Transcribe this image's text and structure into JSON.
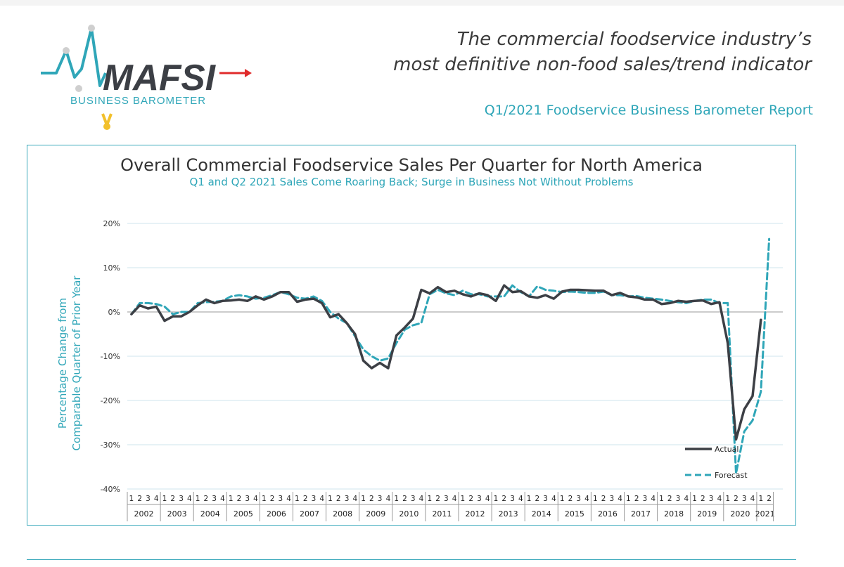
{
  "header": {
    "logo_text": "MAFSI",
    "logo_sub": "BUSINESS BAROMETER",
    "tagline_line1": "The commercial foodservice industry’s",
    "tagline_line2": "most definitive non-food sales/trend indicator",
    "report_title": "Q1/2021 Foodservice Business Barometer Report"
  },
  "colors": {
    "accent": "#2fa6b8",
    "actual": "#3c3f45",
    "forecast": "#2fa6b8",
    "logo_red": "#e02b2b",
    "logo_yellow": "#f2c02c"
  },
  "chart_data": {
    "type": "line",
    "title": "Overall Commercial Foodservice Sales Per Quarter for North America",
    "subtitle": "Q1 and Q2 2021 Sales Come Roaring Back; Surge in Business Not Without Problems",
    "ylabel_line1": "Percentage Change from",
    "ylabel_line2": "Comparable Quarter of Prior Year",
    "ylim": [
      -40,
      20
    ],
    "yticks": [
      20,
      10,
      0,
      -10,
      -20,
      -30,
      -40
    ],
    "ytick_labels": [
      "20%",
      "10%",
      "0%",
      "-10%",
      "-20%",
      "-30%",
      "-40%"
    ],
    "grid": true,
    "legend_position": "bottom-right",
    "years": [
      "2002",
      "2003",
      "2004",
      "2005",
      "2006",
      "2007",
      "2008",
      "2009",
      "2010",
      "2011",
      "2012",
      "2013",
      "2014",
      "2015",
      "2016",
      "2017",
      "2018",
      "2019",
      "2020",
      "2021"
    ],
    "quarter_labels": [
      "1",
      "2",
      "3",
      "4"
    ],
    "quarters_per_year": [
      4,
      4,
      4,
      4,
      4,
      4,
      4,
      4,
      4,
      4,
      4,
      4,
      4,
      4,
      4,
      4,
      4,
      4,
      4,
      2
    ],
    "series": [
      {
        "name": "Actual",
        "style": "solid",
        "values": [
          -0.5,
          1.5,
          0.8,
          1.2,
          -2.0,
          -1.0,
          -1.0,
          0.0,
          1.5,
          2.8,
          2.0,
          2.5,
          2.6,
          2.8,
          2.5,
          3.5,
          2.8,
          3.5,
          4.5,
          4.5,
          2.3,
          2.8,
          3.0,
          2.0,
          -1.2,
          -0.5,
          -2.5,
          -5.0,
          -11.0,
          -12.7,
          -11.5,
          -12.7,
          -5.3,
          -3.5,
          -1.5,
          5.0,
          4.2,
          5.6,
          4.5,
          4.8,
          4.0,
          3.5,
          4.2,
          3.8,
          2.5,
          6.0,
          4.5,
          4.7,
          3.5,
          3.2,
          3.8,
          3.0,
          4.6,
          5.0,
          5.0,
          4.9,
          4.8,
          4.8,
          3.8,
          4.3,
          3.5,
          3.3,
          2.8,
          2.8,
          1.8,
          2.0,
          2.5,
          2.3,
          2.5,
          2.6,
          1.8,
          2.2,
          -7.0,
          -28.8,
          -22.0,
          -19.0,
          -1.8
        ]
      },
      {
        "name": "Forecast",
        "style": "dashed",
        "values": [
          -0.5,
          2.0,
          2.0,
          1.8,
          1.2,
          -0.5,
          0.0,
          0.0,
          2.0,
          2.2,
          2.3,
          2.5,
          3.5,
          3.8,
          3.5,
          3.0,
          3.2,
          3.8,
          4.5,
          4.0,
          3.2,
          3.0,
          3.5,
          2.5,
          0.0,
          -1.5,
          -2.5,
          -5.5,
          -8.5,
          -10.0,
          -11.0,
          -10.5,
          -7.0,
          -4.0,
          -3.0,
          -2.5,
          4.0,
          5.0,
          4.2,
          3.8,
          4.8,
          4.0,
          4.0,
          3.5,
          3.5,
          3.5,
          6.0,
          4.5,
          3.5,
          5.8,
          5.0,
          4.8,
          4.5,
          4.6,
          4.5,
          4.3,
          4.3,
          4.6,
          3.8,
          3.8,
          3.5,
          3.6,
          3.2,
          3.0,
          2.8,
          2.5,
          2.2,
          2.0,
          2.5,
          2.8,
          2.8,
          2.0,
          2.0,
          -36.5,
          -27.0,
          -24.5,
          -18.0,
          16.5
        ]
      }
    ]
  }
}
